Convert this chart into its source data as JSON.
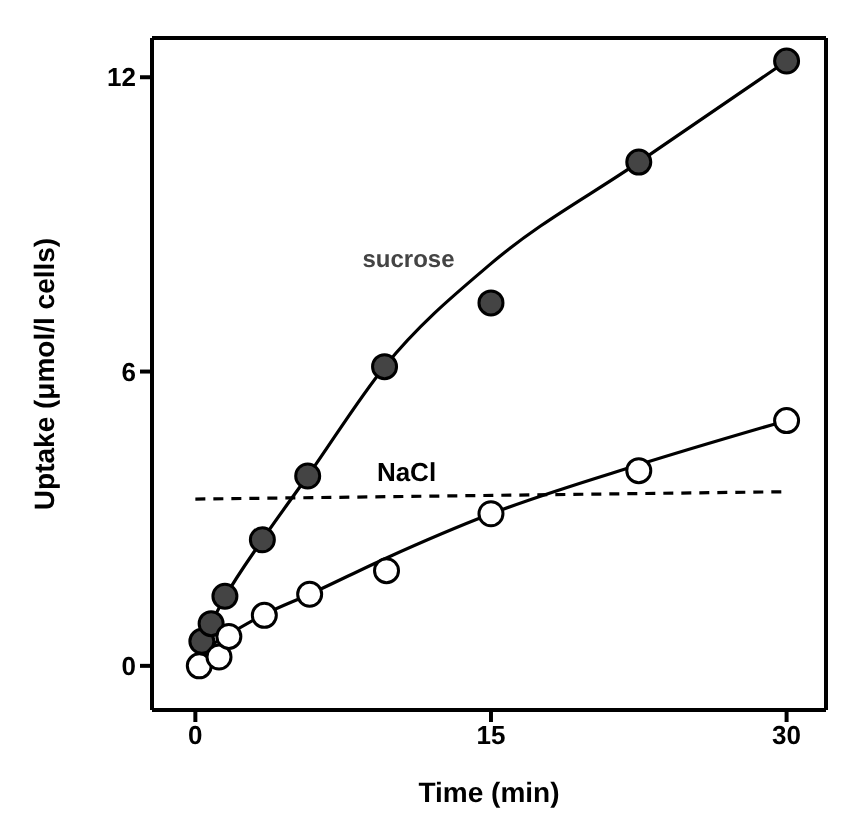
{
  "chart_data": {
    "type": "scatter",
    "xlabel": "Time  (min)",
    "ylabel": "Uptake  (μmol/l cells)",
    "xlim": [
      -2.2,
      32
    ],
    "ylim": [
      -0.9,
      12.8
    ],
    "xticks": [
      0,
      15,
      30
    ],
    "yticks": [
      0,
      6,
      12
    ],
    "marker": "circle",
    "series": [
      {
        "name": "sucrose",
        "color": "#444444",
        "x": [
          0.33,
          0.8,
          1.5,
          3.4,
          5.7,
          9.6,
          15,
          22.5,
          30
        ],
        "values": [
          0.5,
          0.86,
          1.42,
          2.57,
          3.87,
          6.1,
          7.4,
          10.27,
          12.33
        ]
      },
      {
        "name": "NaCl",
        "color": "#ffffff",
        "x": [
          0.2,
          1.2,
          1.7,
          3.5,
          5.8,
          9.7,
          15,
          22.5,
          30
        ],
        "values": [
          0,
          0.18,
          0.6,
          1.03,
          1.46,
          1.94,
          3.1,
          3.98,
          5.0
        ]
      },
      {
        "type": "line",
        "color": "#000000",
        "marker": "none",
        "line_style": "solid",
        "x": [
          0.33,
          1.5,
          3.4,
          5.7,
          9.6,
          15,
          22.5,
          30
        ],
        "values": [
          0.5,
          1.4,
          2.57,
          3.87,
          6.1,
          8.2,
          10.27,
          12.33
        ]
      },
      {
        "type": "line",
        "color": "#000000",
        "marker": "none",
        "line_style": "solid",
        "x": [
          0.3,
          3.5,
          5.8,
          9.7,
          15,
          22.5,
          30
        ],
        "values": [
          0.3,
          1.05,
          1.46,
          2.2,
          3.1,
          4.1,
          5.0
        ]
      },
      {
        "type": "line",
        "color": "#000000",
        "marker": "none",
        "line_style": "dashed",
        "x": [
          0,
          30
        ],
        "values": [
          3.4,
          3.55
        ]
      }
    ]
  }
}
